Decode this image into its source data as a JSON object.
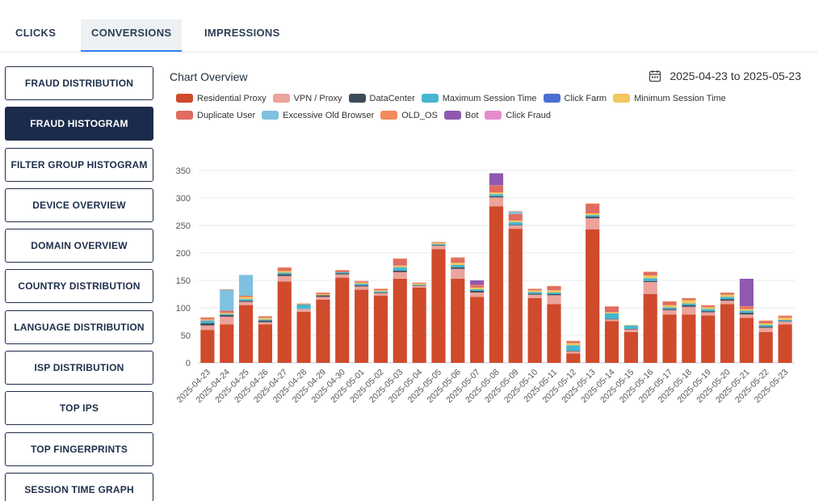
{
  "tabs": [
    {
      "label": "CLICKS"
    },
    {
      "label": "CONVERSIONS"
    },
    {
      "label": "IMPRESSIONS"
    }
  ],
  "sidebar": {
    "items": [
      {
        "label": "FRAUD DISTRIBUTION"
      },
      {
        "label": "FRAUD HISTOGRAM"
      },
      {
        "label": "FILTER GROUP HISTOGRAM"
      },
      {
        "label": "DEVICE OVERVIEW"
      },
      {
        "label": "DOMAIN OVERVIEW"
      },
      {
        "label": "COUNTRY DISTRIBUTION"
      },
      {
        "label": "LANGUAGE DISTRIBUTION"
      },
      {
        "label": "ISP DISTRIBUTION"
      },
      {
        "label": "TOP IPS"
      },
      {
        "label": "TOP FINGERPRINTS"
      },
      {
        "label": "SESSION TIME GRAPH"
      }
    ]
  },
  "header": {
    "title": "Chart Overview",
    "date_range": "2025-04-23 to 2025-05-23"
  },
  "chart_data": {
    "type": "bar",
    "stacked": true,
    "title": "Chart Overview",
    "xlabel": "",
    "ylabel": "",
    "ylim": [
      0,
      350
    ],
    "yticks": [
      0,
      50,
      100,
      150,
      200,
      250,
      300,
      350
    ],
    "grid": true,
    "legend_position": "top-left",
    "categories": [
      "2025-04-23",
      "2025-04-24",
      "2025-04-25",
      "2025-04-26",
      "2025-04-27",
      "2025-04-28",
      "2025-04-29",
      "2025-04-30",
      "2025-05-01",
      "2025-05-02",
      "2025-05-03",
      "2025-05-04",
      "2025-05-05",
      "2025-05-06",
      "2025-05-07",
      "2025-05-08",
      "2025-05-09",
      "2025-05-10",
      "2025-05-11",
      "2025-05-12",
      "2025-05-13",
      "2025-05-14",
      "2025-05-15",
      "2025-05-16",
      "2025-05-17",
      "2025-05-18",
      "2025-05-19",
      "2025-05-20",
      "2025-05-21",
      "2025-05-22",
      "2025-05-23"
    ],
    "series": [
      {
        "name": "Residential Proxy",
        "color": "#d04a2c",
        "values": [
          60,
          70,
          105,
          70,
          148,
          93,
          115,
          155,
          133,
          122,
          153,
          137,
          207,
          153,
          120,
          285,
          244,
          118,
          107,
          17,
          243,
          76,
          56,
          125,
          88,
          88,
          86,
          107,
          82,
          56,
          70
        ]
      },
      {
        "name": "VPN / Proxy",
        "color": "#eba39b",
        "values": [
          8,
          14,
          6,
          4,
          10,
          5,
          5,
          6,
          6,
          5,
          12,
          3,
          6,
          18,
          8,
          16,
          6,
          6,
          16,
          4,
          20,
          3,
          5,
          22,
          8,
          14,
          6,
          6,
          6,
          8,
          5
        ]
      },
      {
        "name": "DataCenter",
        "color": "#3d4c5a",
        "values": [
          4,
          3,
          2,
          3,
          3,
          0,
          3,
          2,
          2,
          1,
          3,
          1,
          1,
          3,
          3,
          2,
          1,
          2,
          2,
          1,
          3,
          1,
          1,
          2,
          2,
          3,
          2,
          3,
          3,
          2,
          1
        ]
      },
      {
        "name": "Maximum Session Time",
        "color": "#45b7d1",
        "values": [
          4,
          2,
          3,
          2,
          3,
          8,
          0,
          2,
          3,
          2,
          6,
          1,
          2,
          4,
          3,
          4,
          5,
          3,
          3,
          10,
          3,
          10,
          6,
          5,
          3,
          3,
          4,
          4,
          4,
          3,
          2
        ]
      },
      {
        "name": "Click Farm",
        "color": "#4a6ed1",
        "values": [
          1,
          0,
          0,
          0,
          0,
          0,
          0,
          0,
          0,
          0,
          0,
          0,
          0,
          0,
          0,
          0,
          0,
          0,
          0,
          0,
          0,
          0,
          0,
          0,
          0,
          0,
          0,
          0,
          0,
          0,
          0
        ]
      },
      {
        "name": "Minimum Session Time",
        "color": "#f2c75c",
        "values": [
          2,
          2,
          4,
          3,
          3,
          0,
          2,
          0,
          2,
          2,
          3,
          2,
          2,
          4,
          3,
          3,
          3,
          3,
          4,
          4,
          3,
          2,
          1,
          5,
          4,
          6,
          3,
          4,
          3,
          3,
          4
        ]
      },
      {
        "name": "Duplicate User",
        "color": "#e06c61",
        "values": [
          3,
          4,
          2,
          2,
          6,
          0,
          2,
          3,
          2,
          2,
          12,
          1,
          1,
          9,
          4,
          12,
          12,
          2,
          7,
          3,
          17,
          10,
          0,
          6,
          6,
          3,
          3,
          3,
          4,
          4,
          3
        ]
      },
      {
        "name": "Excessive Old Browser",
        "color": "#7fc1e0",
        "values": [
          0,
          38,
          38,
          0,
          0,
          0,
          0,
          0,
          0,
          0,
          0,
          0,
          0,
          0,
          0,
          0,
          4,
          0,
          0,
          0,
          0,
          0,
          0,
          0,
          0,
          0,
          0,
          0,
          0,
          0,
          0
        ]
      },
      {
        "name": "OLD_OS",
        "color": "#f48b5b",
        "values": [
          1,
          1,
          0,
          1,
          1,
          2,
          1,
          1,
          1,
          1,
          1,
          1,
          1,
          1,
          1,
          1,
          1,
          1,
          1,
          1,
          1,
          1,
          0,
          1,
          1,
          1,
          1,
          1,
          1,
          1,
          1
        ]
      },
      {
        "name": "Bot",
        "color": "#9058b0",
        "values": [
          0,
          0,
          0,
          0,
          0,
          0,
          0,
          0,
          0,
          0,
          0,
          0,
          0,
          0,
          8,
          22,
          0,
          0,
          0,
          0,
          0,
          0,
          0,
          0,
          0,
          0,
          0,
          0,
          50,
          0,
          0
        ]
      },
      {
        "name": "Click Fraud",
        "color": "#e48ccb",
        "values": [
          0,
          0,
          0,
          0,
          0,
          0,
          0,
          0,
          0,
          0,
          0,
          0,
          0,
          0,
          0,
          0,
          0,
          0,
          0,
          0,
          0,
          0,
          0,
          0,
          0,
          0,
          0,
          0,
          0,
          0,
          0
        ]
      }
    ]
  }
}
